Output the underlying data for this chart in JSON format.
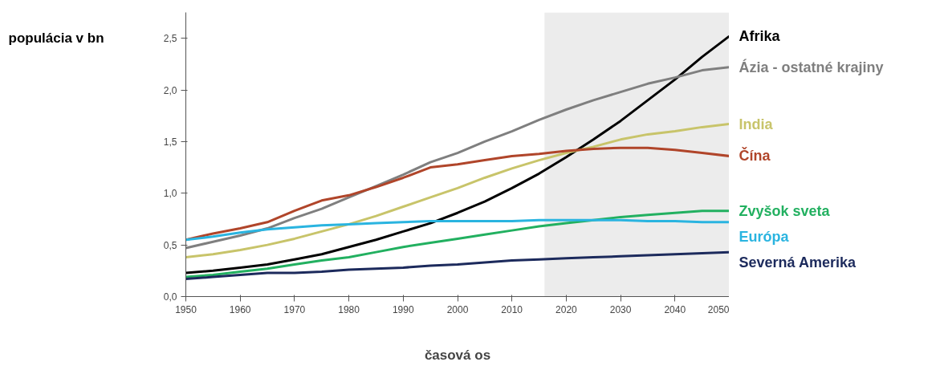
{
  "chart_data": {
    "type": "line",
    "ylabel": "populácia v bn",
    "xlabel": "časová os",
    "x": [
      1950,
      1955,
      1960,
      1965,
      1970,
      1975,
      1980,
      1985,
      1990,
      1995,
      2000,
      2005,
      2010,
      2015,
      2020,
      2025,
      2030,
      2035,
      2040,
      2045,
      2050
    ],
    "series": [
      {
        "name": "Afrika",
        "color": "#000000",
        "values": [
          0.23,
          0.25,
          0.28,
          0.31,
          0.36,
          0.41,
          0.48,
          0.55,
          0.63,
          0.71,
          0.81,
          0.92,
          1.05,
          1.19,
          1.35,
          1.52,
          1.7,
          1.9,
          2.1,
          2.32,
          2.52
        ]
      },
      {
        "name": "Ázia - ostatné krajiny",
        "color": "#7f7f7f",
        "values": [
          0.47,
          0.53,
          0.59,
          0.66,
          0.76,
          0.85,
          0.96,
          1.07,
          1.18,
          1.3,
          1.39,
          1.5,
          1.6,
          1.71,
          1.81,
          1.9,
          1.98,
          2.06,
          2.12,
          2.19,
          2.22
        ]
      },
      {
        "name": "India",
        "color": "#c8c46a",
        "values": [
          0.38,
          0.41,
          0.45,
          0.5,
          0.56,
          0.63,
          0.7,
          0.78,
          0.87,
          0.96,
          1.05,
          1.15,
          1.24,
          1.32,
          1.39,
          1.45,
          1.52,
          1.57,
          1.6,
          1.64,
          1.67
        ]
      },
      {
        "name": "Čína",
        "color": "#b0452a",
        "values": [
          0.55,
          0.61,
          0.66,
          0.72,
          0.83,
          0.93,
          0.98,
          1.06,
          1.15,
          1.25,
          1.28,
          1.32,
          1.36,
          1.38,
          1.41,
          1.43,
          1.44,
          1.44,
          1.42,
          1.39,
          1.36
        ]
      },
      {
        "name": "Zvyšok sveta",
        "color": "#22b060",
        "values": [
          0.19,
          0.21,
          0.24,
          0.27,
          0.31,
          0.35,
          0.38,
          0.43,
          0.48,
          0.52,
          0.56,
          0.6,
          0.64,
          0.68,
          0.71,
          0.74,
          0.77,
          0.79,
          0.81,
          0.83,
          0.83
        ]
      },
      {
        "name": "Európa",
        "color": "#2ab4e0",
        "values": [
          0.55,
          0.58,
          0.62,
          0.65,
          0.67,
          0.69,
          0.7,
          0.71,
          0.72,
          0.73,
          0.73,
          0.73,
          0.73,
          0.74,
          0.74,
          0.74,
          0.74,
          0.73,
          0.73,
          0.72,
          0.72
        ]
      },
      {
        "name": "Severná Amerika",
        "color": "#1c2a5c",
        "values": [
          0.17,
          0.19,
          0.21,
          0.23,
          0.23,
          0.24,
          0.26,
          0.27,
          0.28,
          0.3,
          0.31,
          0.33,
          0.35,
          0.36,
          0.37,
          0.38,
          0.39,
          0.4,
          0.41,
          0.42,
          0.43
        ]
      }
    ],
    "xlim": [
      1950,
      2050
    ],
    "ylim": [
      0,
      2.75
    ],
    "xticks": [
      1950,
      1960,
      1970,
      1980,
      1990,
      2000,
      2010,
      2020,
      2030,
      2040,
      2050
    ],
    "yticks": [
      {
        "value": 0,
        "label": "0,0"
      },
      {
        "value": 0.5,
        "label": "0,5"
      },
      {
        "value": 1,
        "label": "1,0"
      },
      {
        "value": 1.5,
        "label": "1,5"
      },
      {
        "value": 2,
        "label": "2,0"
      },
      {
        "value": 2.5,
        "label": "2,5"
      }
    ],
    "bands": [
      {
        "axis": "x",
        "from": 2016,
        "to": 2050,
        "color": "#ececec"
      }
    ],
    "grid": false,
    "marker": "none",
    "line_style": "solid"
  }
}
